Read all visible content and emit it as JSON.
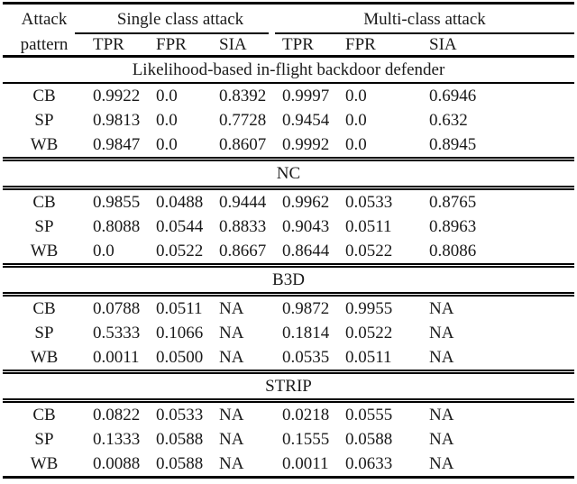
{
  "table": {
    "header": {
      "attack_line1": "Attack",
      "attack_line2": "pattern",
      "group1": "Single class attack",
      "group2": "Multi-class attack",
      "sub": [
        "TPR",
        "FPR",
        "SIA",
        "TPR",
        "FPR",
        "SIA"
      ]
    },
    "sections": [
      {
        "title": "Likelihood-based in-flight backdoor defender",
        "rows": [
          {
            "pattern": "CB",
            "values": [
              "0.9922",
              "0.0",
              "0.8392",
              "0.9997",
              "0.0",
              "0.6946"
            ]
          },
          {
            "pattern": "SP",
            "values": [
              "0.9813",
              "0.0",
              "0.7728",
              "0.9454",
              "0.0",
              "0.632"
            ]
          },
          {
            "pattern": "WB",
            "values": [
              "0.9847",
              "0.0",
              "0.8607",
              "0.9992",
              "0.0",
              "0.8945"
            ]
          }
        ]
      },
      {
        "title": "NC",
        "rows": [
          {
            "pattern": "CB",
            "values": [
              "0.9855",
              "0.0488",
              "0.9444",
              "0.9962",
              "0.0533",
              "0.8765"
            ]
          },
          {
            "pattern": "SP",
            "values": [
              "0.8088",
              "0.0544",
              "0.8833",
              "0.9043",
              "0.0511",
              "0.8963"
            ]
          },
          {
            "pattern": "WB",
            "values": [
              "0.0",
              "0.0522",
              "0.8667",
              "0.8644",
              "0.0522",
              "0.8086"
            ]
          }
        ]
      },
      {
        "title": "B3D",
        "rows": [
          {
            "pattern": "CB",
            "values": [
              "0.0788",
              "0.0511",
              "NA",
              "0.9872",
              "0.9955",
              "NA"
            ]
          },
          {
            "pattern": "SP",
            "values": [
              "0.5333",
              "0.1066",
              "NA",
              "0.1814",
              "0.0522",
              "NA"
            ]
          },
          {
            "pattern": "WB",
            "values": [
              "0.0011",
              "0.0500",
              "NA",
              "0.0535",
              "0.0511",
              "NA"
            ]
          }
        ]
      },
      {
        "title": "STRIP",
        "rows": [
          {
            "pattern": "CB",
            "values": [
              "0.0822",
              "0.0533",
              "NA",
              "0.0218",
              "0.0555",
              "NA"
            ]
          },
          {
            "pattern": "SP",
            "values": [
              "0.1333",
              "0.0588",
              "NA",
              "0.1555",
              "0.0588",
              "NA"
            ]
          },
          {
            "pattern": "WB",
            "values": [
              "0.0088",
              "0.0588",
              "NA",
              "0.0011",
              "0.0633",
              "NA"
            ]
          }
        ]
      }
    ],
    "colors": {
      "background": "#ffffff",
      "text": "#1a1a1a",
      "rule": "#000000"
    }
  }
}
